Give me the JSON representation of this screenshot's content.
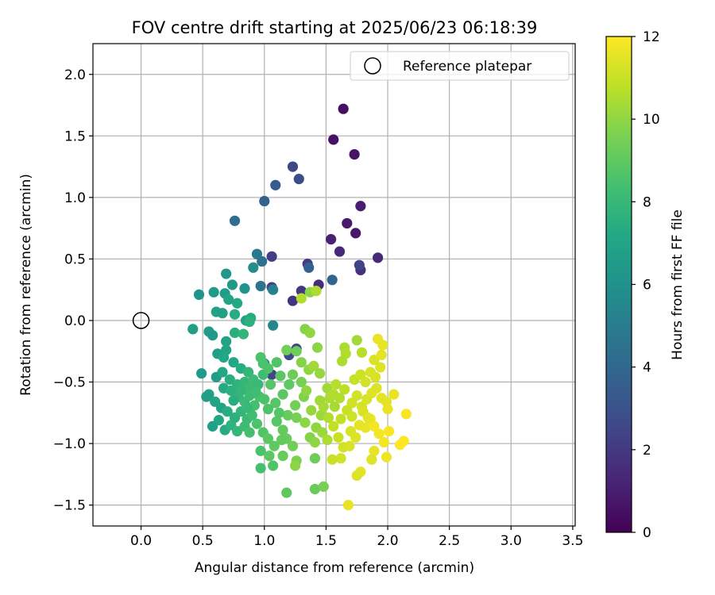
{
  "chart_data": {
    "type": "scatter",
    "title": "FOV centre drift starting at 2025/06/23 06:18:39",
    "xlabel": "Angular distance from reference (arcmin)",
    "ylabel": "Rotation from reference (arcmin)",
    "xlim": [
      -0.39,
      3.52
    ],
    "ylim": [
      -1.67,
      2.25
    ],
    "xticks": [
      "0.0",
      "0.5",
      "1.0",
      "1.5",
      "2.0",
      "2.5",
      "3.0",
      "3.5"
    ],
    "xtick_values": [
      0.0,
      0.5,
      1.0,
      1.5,
      2.0,
      2.5,
      3.0,
      3.5
    ],
    "yticks": [
      "−1.5",
      "−1.0",
      "−0.5",
      "0.0",
      "0.5",
      "1.0",
      "1.5",
      "2.0"
    ],
    "ytick_values": [
      -1.5,
      -1.0,
      -0.5,
      0.0,
      0.5,
      1.0,
      1.5,
      2.0
    ],
    "grid": true,
    "legend": {
      "position": "top-right",
      "entries": [
        "Reference platepar"
      ]
    },
    "reference_point": {
      "x": 0.0,
      "y": 0.0
    },
    "colorbar": {
      "label": "Hours from first FF file",
      "range": [
        0,
        12
      ],
      "ticks": [
        "0",
        "2",
        "4",
        "6",
        "8",
        "10",
        "12"
      ],
      "tick_values": [
        0,
        2,
        4,
        6,
        8,
        10,
        12
      ],
      "colormap": "viridis"
    },
    "points": [
      [
        1.64,
        1.72,
        0.5
      ],
      [
        1.56,
        1.47,
        0.6
      ],
      [
        1.73,
        1.35,
        0.7
      ],
      [
        1.67,
        0.79,
        0.9
      ],
      [
        1.78,
        0.93,
        1.0
      ],
      [
        1.74,
        0.71,
        0.8
      ],
      [
        1.54,
        0.66,
        1.1
      ],
      [
        1.61,
        0.56,
        1.3
      ],
      [
        1.92,
        0.51,
        1.4
      ],
      [
        1.78,
        0.41,
        1.6
      ],
      [
        1.77,
        0.45,
        2.4
      ],
      [
        1.44,
        0.29,
        1.5
      ],
      [
        1.23,
        0.16,
        1.8
      ],
      [
        1.3,
        0.24,
        2.0
      ],
      [
        1.35,
        0.46,
        2.1
      ],
      [
        1.06,
        0.52,
        2.2
      ],
      [
        1.06,
        0.27,
        2.3
      ],
      [
        1.23,
        1.25,
        2.6
      ],
      [
        1.28,
        1.15,
        2.7
      ],
      [
        1.09,
        1.1,
        3.4
      ],
      [
        1.0,
        0.97,
        3.8
      ],
      [
        0.76,
        0.81,
        4.3
      ],
      [
        1.36,
        0.43,
        3.6
      ],
      [
        1.55,
        0.33,
        3.9
      ],
      [
        0.94,
        0.54,
        4.8
      ],
      [
        0.98,
        0.48,
        4.4
      ],
      [
        0.97,
        0.28,
        4.6
      ],
      [
        1.07,
        0.25,
        5.2
      ],
      [
        1.07,
        -0.04,
        5.5
      ],
      [
        1.0,
        -0.35,
        4.9
      ],
      [
        1.26,
        -0.23,
        2.4
      ],
      [
        1.2,
        -0.28,
        2.7
      ],
      [
        1.06,
        -0.44,
        2.5
      ],
      [
        0.91,
        0.43,
        5.8
      ],
      [
        0.69,
        0.38,
        6.3
      ],
      [
        0.74,
        0.29,
        6.4
      ],
      [
        0.84,
        0.26,
        6.1
      ],
      [
        0.59,
        0.23,
        6.5
      ],
      [
        0.47,
        0.21,
        6.2
      ],
      [
        0.68,
        0.22,
        6.6
      ],
      [
        0.71,
        0.17,
        7.0
      ],
      [
        0.78,
        0.14,
        7.2
      ],
      [
        0.61,
        0.07,
        6.9
      ],
      [
        0.76,
        0.05,
        7.4
      ],
      [
        0.66,
        0.06,
        6.8
      ],
      [
        0.85,
        0.0,
        7.0
      ],
      [
        0.89,
        0.02,
        7.3
      ],
      [
        0.88,
        -0.01,
        7.6
      ],
      [
        0.42,
        -0.07,
        6.7
      ],
      [
        0.55,
        -0.09,
        6.6
      ],
      [
        0.58,
        -0.12,
        6.4
      ],
      [
        0.76,
        -0.1,
        7.5
      ],
      [
        0.83,
        -0.11,
        7.8
      ],
      [
        0.69,
        -0.17,
        6.9
      ],
      [
        0.62,
        -0.27,
        6.8
      ],
      [
        0.69,
        -0.24,
        7.0
      ],
      [
        0.67,
        -0.3,
        7.1
      ],
      [
        0.75,
        -0.34,
        7.2
      ],
      [
        0.81,
        -0.39,
        7.4
      ],
      [
        0.87,
        -0.42,
        7.9
      ],
      [
        0.61,
        -0.46,
        6.6
      ],
      [
        0.49,
        -0.43,
        6.5
      ],
      [
        0.66,
        -0.42,
        7.2
      ],
      [
        0.72,
        -0.48,
        7.5
      ],
      [
        0.55,
        -0.6,
        6.8
      ],
      [
        0.53,
        -0.62,
        6.7
      ],
      [
        0.6,
        -0.66,
        7.0
      ],
      [
        0.67,
        -0.55,
        7.3
      ],
      [
        0.73,
        -0.57,
        7.6
      ],
      [
        0.78,
        -0.52,
        7.7
      ],
      [
        0.84,
        -0.5,
        7.9
      ],
      [
        0.88,
        -0.55,
        8.1
      ],
      [
        0.91,
        -0.48,
        8.2
      ],
      [
        0.95,
        -0.52,
        8.0
      ],
      [
        0.99,
        -0.44,
        8.3
      ],
      [
        0.99,
        -0.35,
        8.5
      ],
      [
        1.03,
        -0.39,
        8.6
      ],
      [
        1.1,
        -0.34,
        8.7
      ],
      [
        1.05,
        -0.52,
        8.8
      ],
      [
        0.79,
        -0.62,
        7.8
      ],
      [
        0.84,
        -0.66,
        8.1
      ],
      [
        0.88,
        -0.61,
        8.2
      ],
      [
        0.92,
        -0.69,
        8.4
      ],
      [
        0.96,
        -0.62,
        8.5
      ],
      [
        1.0,
        -0.64,
        8.6
      ],
      [
        0.65,
        -0.71,
        6.9
      ],
      [
        0.7,
        -0.74,
        7.4
      ],
      [
        0.76,
        -0.79,
        7.6
      ],
      [
        0.81,
        -0.74,
        7.8
      ],
      [
        0.86,
        -0.8,
        8.1
      ],
      [
        0.9,
        -0.77,
        8.3
      ],
      [
        0.94,
        -0.84,
        8.6
      ],
      [
        0.58,
        -0.86,
        6.8
      ],
      [
        0.63,
        -0.81,
        7.1
      ],
      [
        0.68,
        -0.89,
        7.3
      ],
      [
        0.73,
        -0.85,
        7.7
      ],
      [
        0.78,
        -0.9,
        7.9
      ],
      [
        0.84,
        -0.86,
        8.2
      ],
      [
        0.88,
        -0.91,
        8.4
      ],
      [
        0.99,
        -0.91,
        8.7
      ],
      [
        1.03,
        -0.96,
        8.9
      ],
      [
        1.08,
        -1.02,
        9.0
      ],
      [
        1.1,
        -0.82,
        8.8
      ],
      [
        1.15,
        -0.89,
        9.1
      ],
      [
        1.18,
        -0.96,
        9.2
      ],
      [
        1.23,
        -1.02,
        9.4
      ],
      [
        0.97,
        -1.06,
        8.5
      ],
      [
        1.04,
        -1.1,
        8.9
      ],
      [
        1.15,
        -1.1,
        9.2
      ],
      [
        1.26,
        -1.14,
        9.6
      ],
      [
        1.07,
        -1.18,
        8.7
      ],
      [
        0.97,
        -1.2,
        8.4
      ],
      [
        1.18,
        -1.4,
        9.0
      ],
      [
        1.25,
        -1.18,
        9.9
      ],
      [
        1.41,
        -1.12,
        9.3
      ],
      [
        1.41,
        -1.37,
        9.2
      ],
      [
        1.48,
        -1.35,
        9.5
      ],
      [
        1.13,
        -0.45,
        8.9
      ],
      [
        1.2,
        -0.52,
        9.0
      ],
      [
        1.15,
        -0.6,
        8.9
      ],
      [
        1.23,
        -0.44,
        9.3
      ],
      [
        1.3,
        -0.5,
        9.5
      ],
      [
        1.09,
        -0.67,
        8.8
      ],
      [
        1.25,
        -0.69,
        9.4
      ],
      [
        1.32,
        -0.62,
        9.7
      ],
      [
        1.19,
        -0.77,
        9.2
      ],
      [
        1.26,
        -0.79,
        9.5
      ],
      [
        1.33,
        -0.83,
        9.9
      ],
      [
        1.38,
        -0.73,
        10.1
      ],
      [
        1.42,
        -0.87,
        10.0
      ],
      [
        1.46,
        -0.77,
        10.2
      ],
      [
        1.3,
        -0.34,
        9.8
      ],
      [
        1.36,
        -0.4,
        10.0
      ],
      [
        1.4,
        -0.37,
        10.3
      ],
      [
        1.45,
        -0.43,
        10.1
      ],
      [
        1.51,
        -0.55,
        10.3
      ],
      [
        1.53,
        -0.63,
        10.5
      ],
      [
        1.57,
        -0.7,
        10.4
      ],
      [
        1.61,
        -0.63,
        10.6
      ],
      [
        1.65,
        -0.56,
        10.8
      ],
      [
        1.58,
        -0.52,
        10.7
      ],
      [
        1.52,
        -0.79,
        10.6
      ],
      [
        1.56,
        -0.86,
        10.9
      ],
      [
        1.62,
        -0.8,
        10.9
      ],
      [
        1.67,
        -0.73,
        11.0
      ],
      [
        1.71,
        -0.67,
        11.1
      ],
      [
        1.75,
        -0.61,
        11.2
      ],
      [
        1.79,
        -0.7,
        11.2
      ],
      [
        1.83,
        -0.64,
        11.3
      ],
      [
        1.87,
        -0.59,
        11.4
      ],
      [
        1.91,
        -0.55,
        11.4
      ],
      [
        1.95,
        -0.63,
        11.5
      ],
      [
        1.99,
        -0.66,
        11.5
      ],
      [
        1.73,
        -0.48,
        11.0
      ],
      [
        1.78,
        -0.44,
        11.1
      ],
      [
        1.82,
        -0.5,
        11.2
      ],
      [
        1.86,
        -0.42,
        11.3
      ],
      [
        1.9,
        -0.46,
        11.3
      ],
      [
        1.94,
        -0.38,
        11.4
      ],
      [
        1.89,
        -0.32,
        11.3
      ],
      [
        1.95,
        -0.28,
        11.5
      ],
      [
        1.92,
        -0.15,
        11.6
      ],
      [
        1.96,
        -0.2,
        11.6
      ],
      [
        1.65,
        -0.22,
        10.5
      ],
      [
        1.66,
        -0.27,
        10.6
      ],
      [
        1.63,
        -0.33,
        10.5
      ],
      [
        1.75,
        -0.16,
        10.3
      ],
      [
        1.79,
        -0.26,
        10.7
      ],
      [
        1.33,
        -0.07,
        9.8
      ],
      [
        1.37,
        -0.1,
        10.0
      ],
      [
        1.43,
        -0.22,
        9.9
      ],
      [
        1.37,
        0.23,
        9.9
      ],
      [
        1.42,
        0.24,
        10.5
      ],
      [
        1.3,
        0.18,
        10.6
      ],
      [
        1.18,
        -0.24,
        9.4
      ],
      [
        1.26,
        -0.25,
        9.3
      ],
      [
        1.6,
        -0.95,
        11.0
      ],
      [
        1.64,
        -1.03,
        11.2
      ],
      [
        1.7,
        -0.9,
        11.3
      ],
      [
        1.74,
        -0.95,
        11.4
      ],
      [
        1.77,
        -0.85,
        11.5
      ],
      [
        1.82,
        -0.87,
        11.6
      ],
      [
        1.86,
        -0.8,
        11.7
      ],
      [
        1.89,
        -0.86,
        11.8
      ],
      [
        1.93,
        -0.92,
        11.8
      ],
      [
        1.97,
        -0.99,
        11.8
      ],
      [
        2.01,
        -0.9,
        11.9
      ],
      [
        2.05,
        -0.6,
        11.6
      ],
      [
        2.0,
        -0.72,
        11.6
      ],
      [
        2.15,
        -0.76,
        11.9
      ],
      [
        2.13,
        -0.98,
        12.0
      ],
      [
        2.1,
        -1.01,
        12.0
      ],
      [
        1.99,
        -1.11,
        11.7
      ],
      [
        1.89,
        -1.06,
        11.6
      ],
      [
        1.87,
        -1.13,
        11.4
      ],
      [
        1.78,
        -1.23,
        11.5
      ],
      [
        1.75,
        -1.26,
        11.4
      ],
      [
        1.62,
        -1.12,
        11.2
      ],
      [
        1.55,
        -1.13,
        11.0
      ],
      [
        1.68,
        -1.5,
        11.6
      ],
      [
        1.37,
        -0.95,
        9.8
      ],
      [
        1.41,
        -0.99,
        10.0
      ],
      [
        1.47,
        -0.91,
        10.2
      ],
      [
        1.51,
        -0.97,
        10.5
      ],
      [
        1.34,
        -0.57,
        10.0
      ],
      [
        1.45,
        -0.65,
        10.3
      ],
      [
        1.48,
        -0.7,
        10.4
      ],
      [
        1.56,
        -0.6,
        10.6
      ],
      [
        0.97,
        -0.3,
        8.6
      ],
      [
        1.03,
        -0.72,
        8.6
      ],
      [
        1.12,
        -0.75,
        8.8
      ],
      [
        1.14,
        -0.97,
        9.1
      ],
      [
        0.81,
        -0.57,
        7.9
      ],
      [
        0.75,
        -0.65,
        7.5
      ],
      [
        0.86,
        -0.71,
        8.0
      ],
      [
        0.93,
        -0.58,
        8.3
      ],
      [
        1.71,
        -0.78,
        11.1
      ],
      [
        1.8,
        -0.74,
        11.3
      ],
      [
        1.84,
        -0.79,
        11.5
      ],
      [
        1.69,
        -1.02,
        11.3
      ]
    ]
  }
}
